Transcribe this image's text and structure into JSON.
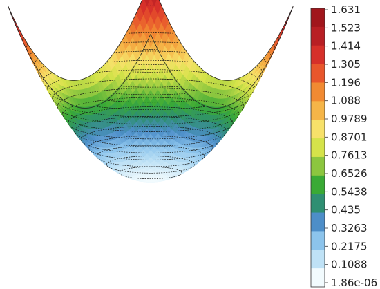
{
  "chart_data": {
    "type": "surface",
    "title": "",
    "xlabel": "",
    "ylabel": "",
    "zlabel": "",
    "value_range": [
      1.86e-06,
      1.631
    ],
    "contour_levels": 15,
    "colormap": [
      "#f2fbfe",
      "#bfe2f6",
      "#8cc4ec",
      "#4d8ec8",
      "#2f8f72",
      "#3aaa35",
      "#8cc63f",
      "#d5e34a",
      "#f7e16a",
      "#f5b548",
      "#f18a32",
      "#e8562c",
      "#d6302a",
      "#b81f24",
      "#a1161c"
    ],
    "colorbar": {
      "placement": "right",
      "tick_labels": [
        "1.631",
        "1.523",
        "1.414",
        "1.305",
        "1.196",
        "1.088",
        "0.9789",
        "0.8701",
        "0.7613",
        "0.6526",
        "0.5438",
        "0.435",
        "0.3263",
        "0.2175",
        "0.1088",
        "1.86e-06"
      ]
    }
  }
}
